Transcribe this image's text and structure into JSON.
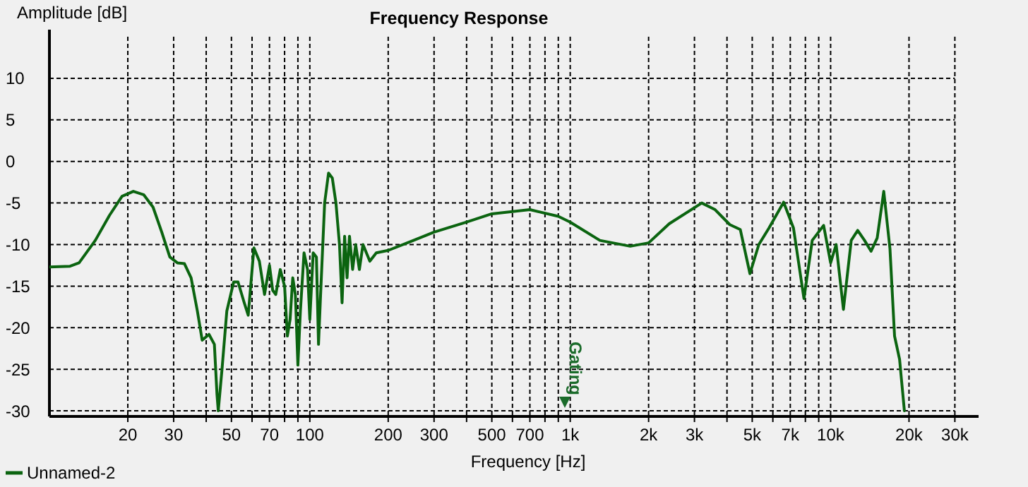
{
  "chart_data": {
    "type": "line",
    "title": "Frequency Response",
    "xlabel": "Frequency [Hz]",
    "ylabel": "Amplitude [dB]",
    "log": "x",
    "grid": true,
    "legend": "bottom left",
    "line_style": "solid",
    "marker": "none",
    "xlim": [
      10,
      37000
    ],
    "ylim": [
      -30.5,
      15
    ],
    "xticks": [
      20,
      30,
      {
        "value": 40,
        "label": null
      },
      50,
      {
        "value": 60,
        "label": null
      },
      70,
      {
        "value": 80,
        "label": null
      },
      {
        "value": 90,
        "label": null
      },
      100,
      200,
      300,
      {
        "value": 400,
        "label": null
      },
      500,
      {
        "value": 600,
        "label": null
      },
      700,
      {
        "value": 800,
        "label": null
      },
      {
        "value": 900,
        "label": null
      },
      {
        "value": 1000,
        "label": "1k"
      },
      {
        "value": 2000,
        "label": "2k"
      },
      {
        "value": 3000,
        "label": "3k"
      },
      {
        "value": 4000,
        "label": null
      },
      {
        "value": 5000,
        "label": "5k"
      },
      {
        "value": 6000,
        "label": null
      },
      {
        "value": 7000,
        "label": "7k"
      },
      {
        "value": 8000,
        "label": null
      },
      {
        "value": 9000,
        "label": null
      },
      {
        "value": 10000,
        "label": "10k"
      },
      {
        "value": 20000,
        "label": "20k"
      },
      {
        "value": 30000,
        "label": "30k"
      }
    ],
    "yticks": [
      -30,
      -25,
      -20,
      -15,
      -10,
      -5,
      0,
      5,
      10
    ],
    "annotations": [
      "Gating"
    ],
    "series": [
      {
        "name": "Unnamed-2",
        "color": "#0b6410",
        "x": [
          10,
          12,
          13,
          15,
          17,
          19,
          21,
          23,
          25,
          27,
          29,
          31,
          33,
          35,
          37,
          38.6,
          41,
          43,
          44,
          44.5,
          46,
          48,
          51,
          53,
          56,
          58,
          61,
          64,
          67,
          70,
          72,
          74,
          77,
          80,
          82,
          84,
          86,
          88,
          90,
          92,
          95,
          98,
          100,
          103,
          106,
          108,
          110,
          114,
          118,
          122,
          126,
          130,
          133,
          136,
          139,
          142,
          146,
          150,
          155,
          160,
          170,
          180,
          200,
          250,
          300,
          400,
          500,
          700,
          900,
          1000,
          1300,
          1700,
          2000,
          2400,
          3200,
          3600,
          4100,
          4500,
          4900,
          5300,
          5800,
          6600,
          7200,
          7900,
          8500,
          9400,
          10000,
          10500,
          11200,
          12000,
          12700,
          13500,
          14300,
          15100,
          16000,
          16900,
          17600,
          18400,
          19200
        ],
        "values": [
          -12.7,
          -12.6,
          -12.2,
          -9.5,
          -6.5,
          -4.2,
          -3.6,
          -4,
          -5.5,
          -8.5,
          -11.5,
          -12.2,
          -12.3,
          -14,
          -18,
          -21.5,
          -20.8,
          -22,
          -28,
          -30,
          -25,
          -18,
          -14.5,
          -14.5,
          -17,
          -18.5,
          -10.4,
          -12,
          -16,
          -12.5,
          -15.5,
          -16,
          -13,
          -15,
          -21,
          -19,
          -14,
          -16,
          -24.5,
          -18,
          -11,
          -13,
          -19,
          -11,
          -11.5,
          -22,
          -16,
          -5,
          -1.4,
          -2,
          -5,
          -10,
          -17,
          -9,
          -14,
          -9,
          -13,
          -10,
          -13,
          -10,
          -12,
          -11,
          -10.7,
          -9.5,
          -8.5,
          -7.3,
          -6.3,
          -5.8,
          -6.6,
          -7.3,
          -9.5,
          -10.2,
          -9.8,
          -7.5,
          -5,
          -5.8,
          -7.6,
          -8.2,
          -13.5,
          -10,
          -8,
          -4.9,
          -8,
          -16.5,
          -9.5,
          -7.7,
          -12.2,
          -10,
          -17.8,
          -9.5,
          -8.3,
          -9.5,
          -10.8,
          -9.2,
          -3.6,
          -10.5,
          -21,
          -23.8,
          -30
        ]
      }
    ]
  }
}
